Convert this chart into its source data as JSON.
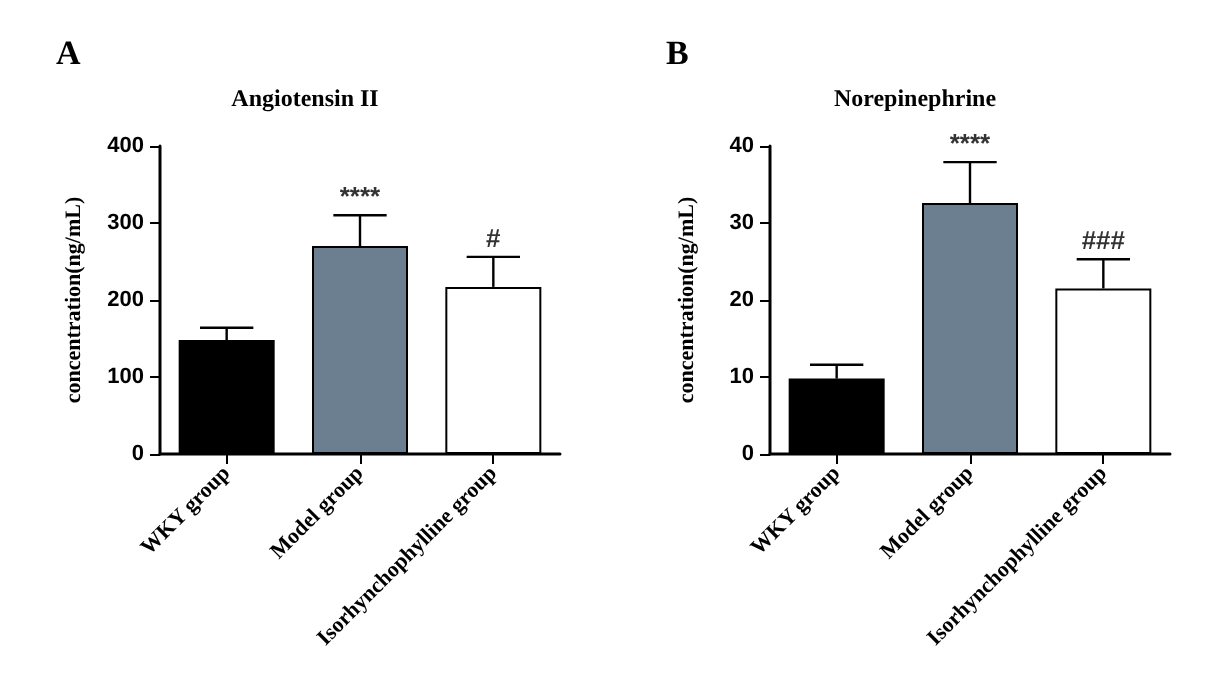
{
  "chart_data": [
    {
      "type": "bar",
      "title": "Angiotensin II",
      "ylabel": "concentration(ng/mL)",
      "categories": [
        "WKY group",
        "Model group",
        "Isorhynchophylline group"
      ],
      "values": [
        148,
        270,
        217
      ],
      "colors": [
        "#000000",
        "#6b7f91",
        "#ffffff"
      ],
      "errors": [
        [
          148,
          164
        ],
        [
          270,
          310
        ],
        [
          217,
          256
        ]
      ],
      "ylim": [
        0,
        400
      ],
      "yticks": [
        0,
        100,
        200,
        300,
        400
      ],
      "grid": false,
      "annotations": [
        "A",
        {
          "text": "****",
          "x": "Model group",
          "y": 310
        },
        {
          "text": "#",
          "x": "Isorhynchophylline group",
          "y": 256
        }
      ]
    },
    {
      "type": "bar",
      "title": "Norepinephrine",
      "ylabel": "concentration(ng/mL)",
      "categories": [
        "WKY group",
        "Model group",
        "Isorhynchophylline group"
      ],
      "values": [
        9.8,
        32.6,
        21.5
      ],
      "colors": [
        "#000000",
        "#6b7f91",
        "#ffffff"
      ],
      "errors": [
        [
          9.8,
          11.6
        ],
        [
          32.6,
          37.9
        ],
        [
          21.5,
          25.3
        ]
      ],
      "ylim": [
        0,
        40
      ],
      "yticks": [
        0,
        10,
        20,
        30,
        40
      ],
      "grid": false,
      "annotations": [
        "B",
        {
          "text": "****",
          "x": "Model group",
          "y": 37.9
        },
        {
          "text": "###",
          "x": "Isorhynchophylline group",
          "y": 25.3
        }
      ]
    }
  ]
}
